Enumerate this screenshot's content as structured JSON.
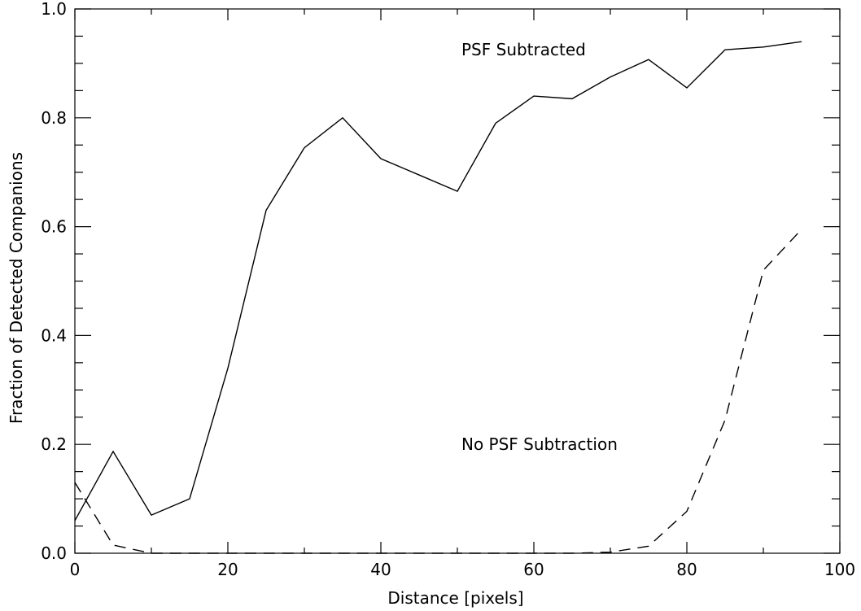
{
  "chart_data": {
    "type": "line",
    "title": "",
    "xlabel": "Distance [pixels]",
    "ylabel": "Fraction of Detected Companions",
    "xlim": [
      0,
      100
    ],
    "ylim": [
      0,
      1.0
    ],
    "x_major_ticks": [
      0,
      20,
      40,
      60,
      80,
      100
    ],
    "x_tick_labels": [
      "0",
      "20",
      "40",
      "60",
      "80",
      "100"
    ],
    "x_minor_step": 10,
    "y_major_ticks": [
      0,
      0.2,
      0.4,
      0.6,
      0.8,
      1.0
    ],
    "y_tick_labels": [
      "0.0",
      "0.2",
      "0.4",
      "0.6",
      "0.8",
      "1.0"
    ],
    "y_minor_step": 0.05,
    "grid": false,
    "x": [
      0,
      5,
      10,
      15,
      20,
      25,
      30,
      35,
      40,
      45,
      50,
      55,
      60,
      65,
      70,
      75,
      80,
      85,
      90,
      95
    ],
    "series": [
      {
        "key": "psf_subtracted",
        "style": "solid",
        "color": "#000000",
        "values": [
          0.06,
          0.187,
          0.07,
          0.1,
          0.34,
          0.63,
          0.745,
          0.8,
          0.725,
          0.695,
          0.665,
          0.79,
          0.84,
          0.835,
          0.875,
          0.907,
          0.855,
          0.925,
          0.93,
          0.94
        ]
      },
      {
        "key": "no_psf_subtraction",
        "style": "dashed",
        "color": "#000000",
        "values": [
          0.13,
          0.015,
          0.0,
          0.0,
          0.0,
          0.0,
          0.0,
          0.0,
          0.0,
          0.0,
          0.0,
          0.0,
          0.0,
          0.0,
          0.002,
          0.013,
          0.077,
          0.245,
          0.52,
          0.595
        ]
      }
    ],
    "annotations": [
      {
        "key": "psf_subtracted_label",
        "text": "PSF Subtracted",
        "x": 50,
        "y": 0.925
      },
      {
        "key": "no_psf_label",
        "text": "No PSF Subtraction",
        "x": 50,
        "y": 0.2
      }
    ]
  }
}
